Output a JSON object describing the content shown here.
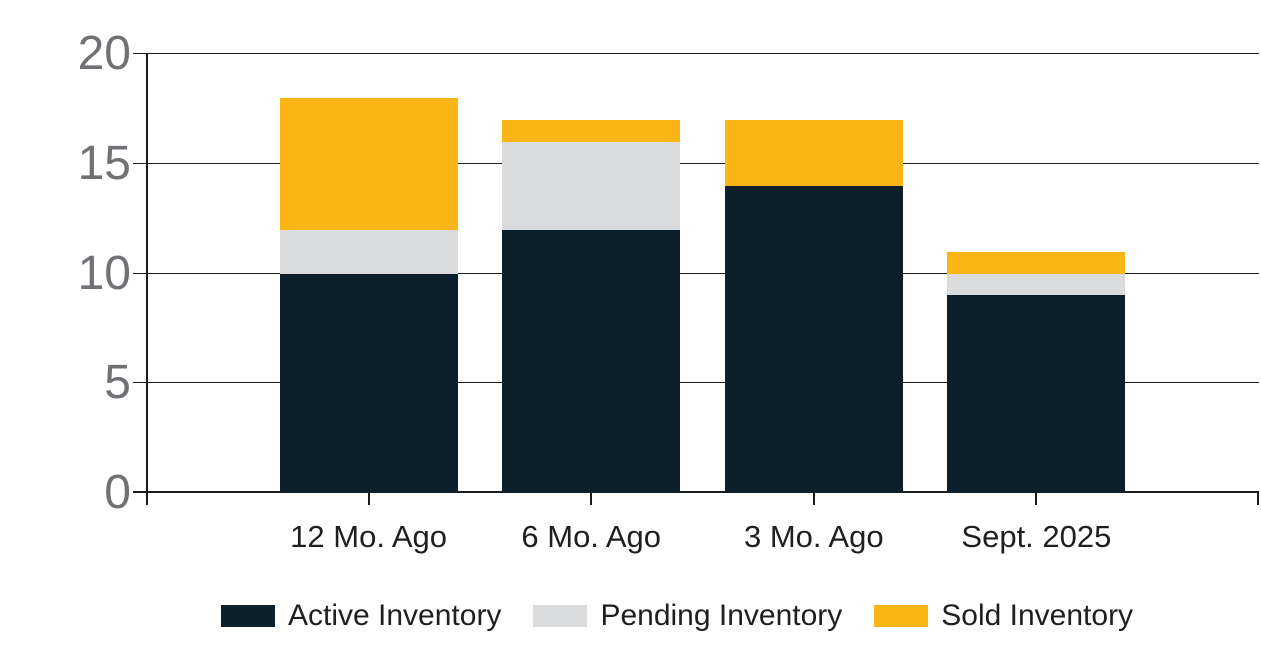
{
  "chart_data": {
    "type": "bar",
    "stacked": true,
    "title": "",
    "categories": [
      "12 Mo. Ago",
      "6 Mo. Ago",
      "3 Mo. Ago",
      "Sept. 2025"
    ],
    "series": [
      {
        "name": "Active Inventory",
        "color": "#0C1F2A",
        "values": [
          10,
          12,
          14,
          9
        ]
      },
      {
        "name": "Pending Inventory",
        "color": "#D9DBDC",
        "values": [
          2,
          4,
          0,
          1
        ]
      },
      {
        "name": "Sold Inventory",
        "color": "#FBB616",
        "values": [
          6,
          1,
          3,
          1
        ]
      }
    ],
    "stack_totals": [
      18,
      17,
      17,
      11
    ],
    "xlabel": "",
    "ylabel": "",
    "ylim": [
      0,
      20
    ],
    "yticks": [
      0,
      5,
      10,
      15,
      20
    ],
    "grid": true,
    "legend_position": "bottom"
  },
  "colors": {
    "background": "#FFFFFF",
    "axis_line": "#1B1B1B",
    "gridline": "#1B1B1B",
    "y_tick_label_color": "#6F7174",
    "x_tick_label_color": "#1F1F1F",
    "legend_text_color": "#1F1F1F"
  }
}
